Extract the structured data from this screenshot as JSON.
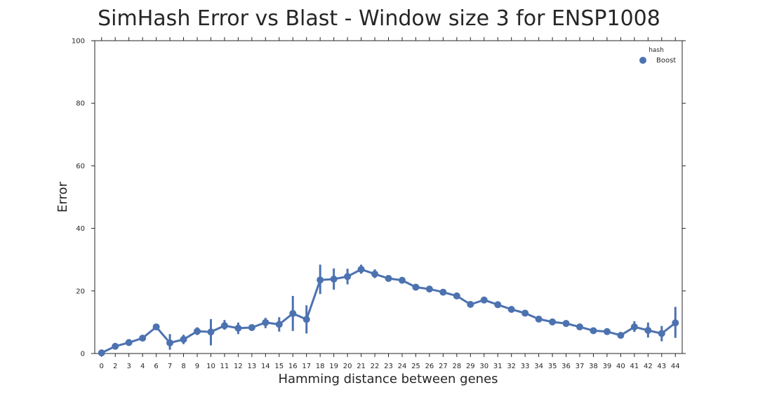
{
  "chart_data": {
    "type": "line",
    "title": "SimHash Error vs Blast - Window size 3 for ENSP1008",
    "xlabel": "Hamming distance between genes",
    "ylabel": "Error",
    "ylim": [
      0,
      100
    ],
    "y_ticks": [
      "0",
      "20",
      "40",
      "60",
      "80",
      "100"
    ],
    "grid": false,
    "legend": {
      "title": "hash",
      "placement": "top-right"
    },
    "categories": [
      "0",
      "2",
      "3",
      "4",
      "6",
      "7",
      "8",
      "9",
      "10",
      "11",
      "12",
      "13",
      "14",
      "15",
      "16",
      "17",
      "18",
      "19",
      "20",
      "21",
      "22",
      "23",
      "24",
      "25",
      "26",
      "27",
      "28",
      "29",
      "30",
      "31",
      "32",
      "33",
      "34",
      "35",
      "36",
      "37",
      "38",
      "39",
      "40",
      "41",
      "42",
      "43",
      "44"
    ],
    "series": [
      {
        "name": "Boost",
        "color": "#4c72b0",
        "values": [
          0.2,
          2.3,
          3.5,
          4.9,
          8.5,
          3.4,
          4.5,
          7.1,
          6.9,
          8.9,
          8.1,
          8.3,
          9.9,
          9.3,
          12.8,
          10.9,
          23.5,
          23.8,
          24.6,
          26.9,
          25.4,
          24.0,
          23.4,
          21.2,
          20.6,
          19.6,
          18.4,
          15.7,
          17.1,
          15.6,
          14.1,
          12.9,
          11.0,
          10.1,
          9.6,
          8.5,
          7.3,
          7.0,
          5.8,
          8.5,
          7.4,
          6.4,
          9.8
        ],
        "err_low": [
          0.2,
          2.3,
          3.5,
          4.9,
          8.5,
          1.2,
          3.0,
          5.9,
          2.6,
          7.6,
          6.2,
          7.6,
          8.1,
          7.0,
          7.2,
          6.4,
          19.0,
          20.4,
          22.1,
          25.5,
          24.1,
          23.4,
          23.4,
          21.2,
          20.6,
          19.6,
          18.4,
          15.7,
          17.1,
          15.6,
          14.1,
          12.9,
          11.0,
          10.1,
          9.6,
          8.5,
          7.3,
          7.0,
          5.8,
          6.9,
          5.1,
          3.9,
          5.0
        ],
        "err_high": [
          0.2,
          2.3,
          3.5,
          4.9,
          8.5,
          6.2,
          6.0,
          8.4,
          11.0,
          10.7,
          9.9,
          9.1,
          11.4,
          11.6,
          18.4,
          15.4,
          28.4,
          27.2,
          27.1,
          28.4,
          26.9,
          24.8,
          23.4,
          21.2,
          20.6,
          19.6,
          18.4,
          15.7,
          17.1,
          15.6,
          14.1,
          12.9,
          11.0,
          10.1,
          9.6,
          8.5,
          7.3,
          7.0,
          5.8,
          10.3,
          9.9,
          8.8,
          14.9
        ]
      }
    ]
  }
}
